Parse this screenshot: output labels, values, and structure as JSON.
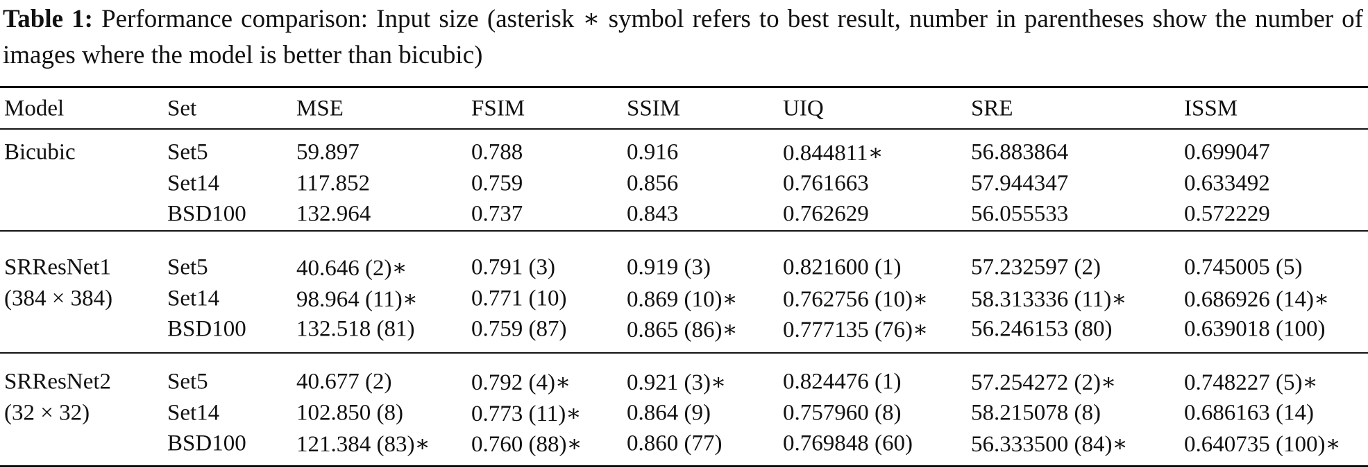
{
  "caption": {
    "label": "Table 1:",
    "text": "Performance comparison: Input size (asterisk ∗ symbol refers to best result, number in parentheses show the number of images where the model is better than bicubic)"
  },
  "table": {
    "header": [
      "Model",
      "Set",
      "MSE",
      "FSIM",
      "SSIM",
      "UIQ",
      "SRE",
      "ISSM"
    ],
    "groups": [
      {
        "model": [
          "Bicubic"
        ],
        "rows": [
          [
            "Set5",
            "59.897",
            "0.788",
            "0.916",
            "0.844811∗",
            "56.883864",
            "0.699047"
          ],
          [
            "Set14",
            "117.852",
            "0.759",
            "0.856",
            "0.761663",
            "57.944347",
            "0.633492"
          ],
          [
            "BSD100",
            "132.964",
            "0.737",
            "0.843",
            "0.762629",
            "56.055533",
            "0.572229"
          ]
        ]
      },
      {
        "model": [
          "SRResNet1",
          "(384 × 384)"
        ],
        "rows": [
          [
            "Set5",
            "40.646 (2)∗",
            "0.791 (3)",
            "0.919 (3)",
            "0.821600 (1)",
            "57.232597 (2)",
            "0.745005 (5)"
          ],
          [
            "Set14",
            "98.964 (11)∗",
            "0.771 (10)",
            "0.869 (10)∗",
            "0.762756 (10)∗",
            "58.313336 (11)∗",
            "0.686926 (14)∗"
          ],
          [
            "BSD100",
            "132.518 (81)",
            "0.759 (87)",
            "0.865 (86)∗",
            "0.777135 (76)∗",
            "56.246153 (80)",
            "0.639018 (100)"
          ]
        ]
      },
      {
        "model": [
          "SRResNet2",
          "(32 × 32)"
        ],
        "rows": [
          [
            "Set5",
            "40.677 (2)",
            "0.792 (4)∗",
            "0.921 (3)∗",
            "0.824476 (1)",
            "57.254272 (2)∗",
            "0.748227 (5)∗"
          ],
          [
            "Set14",
            "102.850 (8)",
            "0.773 (11)∗",
            "0.864 (9)",
            "0.757960 (8)",
            "58.215078 (8)",
            "0.686163 (14)"
          ],
          [
            "BSD100",
            "121.384 (83)∗",
            "0.760 (88)∗",
            "0.860 (77)",
            "0.769848 (60)",
            "56.333500 (84)∗",
            "0.640735 (100)∗"
          ]
        ]
      }
    ]
  }
}
